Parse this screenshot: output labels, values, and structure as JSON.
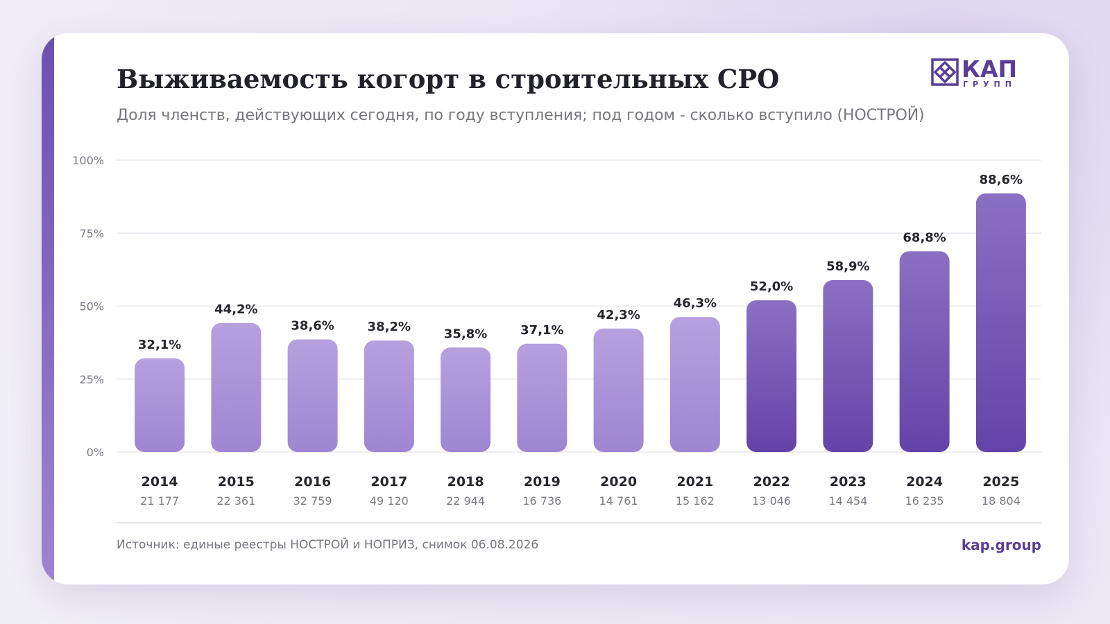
{
  "title": "Выживаемость когорт в строительных СРО",
  "subtitle": "Доля членств, действующих сегодня, по году вступления; под годом - сколько вступило (НОСТРОЙ)",
  "logo": {
    "word": "КАП",
    "sub": "ГРУПП"
  },
  "source": "Источник: единые реестры НОСТРОЙ и НОПРИЗ, снимок 06.08.2026",
  "site": "kap.group",
  "colors": {
    "bar_light_top": "#b6a0de",
    "bar_light_bottom": "#9e86d2",
    "bar_dark_top": "#8a70c2",
    "bar_dark_bottom": "#6443a8",
    "accent": "#5a3e96"
  },
  "chart_data": {
    "type": "bar",
    "categories": [
      "2014",
      "2015",
      "2016",
      "2017",
      "2018",
      "2019",
      "2020",
      "2021",
      "2022",
      "2023",
      "2024",
      "2025"
    ],
    "values": [
      32.1,
      44.2,
      38.6,
      38.2,
      35.8,
      37.1,
      42.3,
      46.3,
      52.0,
      58.9,
      68.8,
      88.6
    ],
    "value_labels": [
      "32,1%",
      "44,2%",
      "38,6%",
      "38,2%",
      "35,8%",
      "37,1%",
      "42,3%",
      "46,3%",
      "52,0%",
      "58,9%",
      "68,8%",
      "88,6%"
    ],
    "counts": [
      "21 177",
      "22 361",
      "32 759",
      "49 120",
      "22 944",
      "16 736",
      "14 761",
      "15 162",
      "13 046",
      "14 454",
      "16 235",
      "18 804"
    ],
    "highlight_from_index": 8,
    "ylim": [
      0,
      100
    ],
    "yticks": [
      0,
      25,
      50,
      75,
      100
    ],
    "ytick_labels": [
      "0%",
      "25%",
      "50%",
      "75%",
      "100%"
    ],
    "grid": true,
    "legend": "none"
  }
}
